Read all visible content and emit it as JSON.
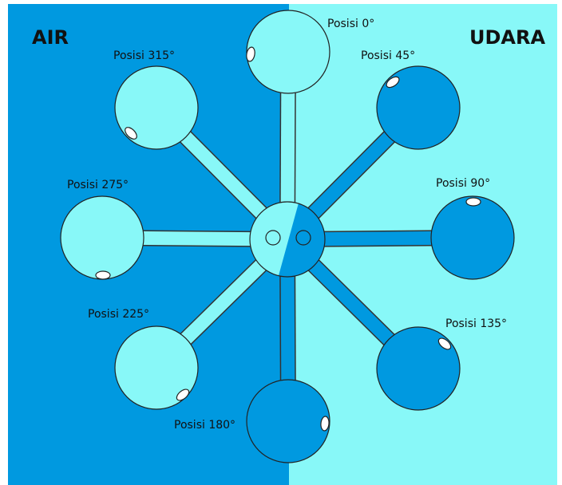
{
  "sides": {
    "left": "AIR",
    "right": "UDARA"
  },
  "positions": [
    "Posisi 0°",
    "Posisi 45°",
    "Posisi 90°",
    "Posisi 135°",
    "Posisi 180°",
    "Posisi 225°",
    "Posisi 275°",
    "Posisi 315°"
  ]
}
